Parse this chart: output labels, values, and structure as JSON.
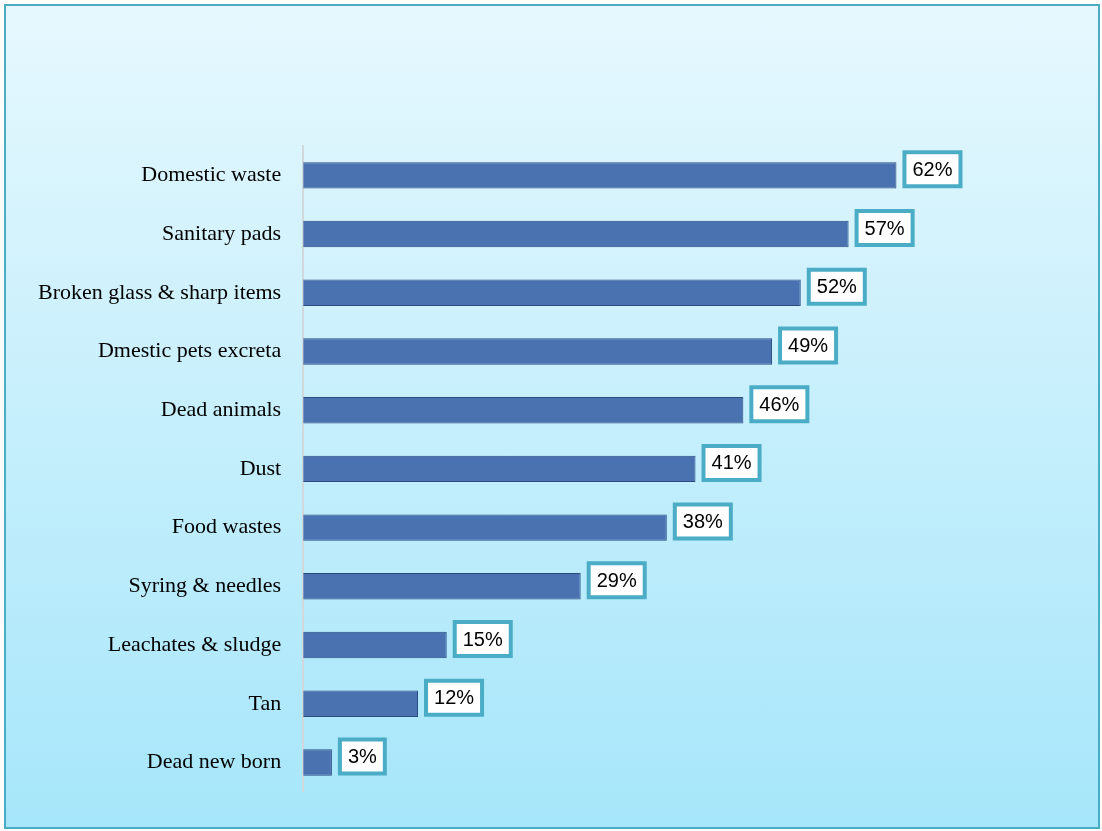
{
  "chart_data": {
    "type": "bar",
    "orientation": "horizontal",
    "categories": [
      "Domestic waste",
      "Sanitary pads",
      "Broken glass & sharp items",
      "Dmestic pets excreta",
      "Dead animals",
      "Dust",
      "Food wastes",
      "Syring & needles",
      "Leachates & sludge",
      "Tan",
      "Dead new born"
    ],
    "values": [
      62,
      57,
      52,
      49,
      46,
      41,
      38,
      29,
      15,
      12,
      3
    ],
    "value_labels": [
      "62%",
      "57%",
      "52%",
      "49%",
      "46%",
      "41%",
      "38%",
      "29%",
      "15%",
      "12%",
      "3%"
    ],
    "color": "#4a72b0",
    "tick_labels": "y"
  }
}
